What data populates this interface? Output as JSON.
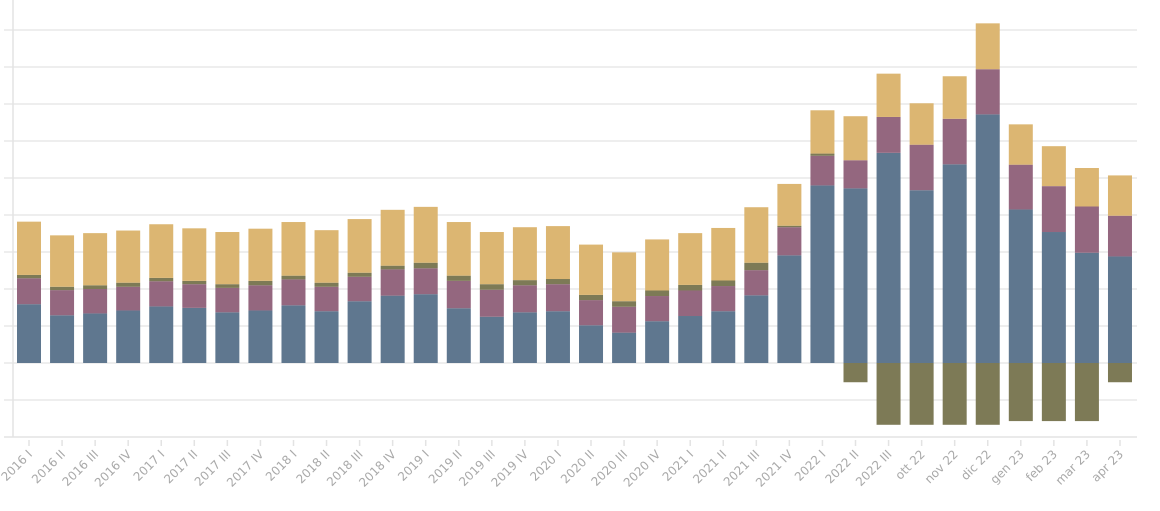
{
  "chart_data": {
    "type": "bar",
    "stacked": true,
    "title": "",
    "xlabel": "",
    "ylabel": "",
    "ylim": [
      -2,
      9
    ],
    "y_ticks_shown": false,
    "grid": true,
    "legend": "none",
    "categories": [
      "2016 I",
      "2016 II",
      "2016 III",
      "2016 IV",
      "2017 I",
      "2017 II",
      "2017 III",
      "2017 IV",
      "2018 I",
      "2018 II",
      "2018 III",
      "2018 IV",
      "2019 I",
      "2019 II",
      "2019 III",
      "2019 IV",
      "2020 I",
      "2020 II",
      "2020 III",
      "2020 IV",
      "2021 I",
      "2021 II",
      "2021 III",
      "2021 IV",
      "2022 I",
      "2022 II",
      "2022 III",
      "ott 22",
      "nov 22",
      "dic 22",
      "gen 23",
      "feb 23",
      "mar 23",
      "apr 23"
    ],
    "series": [
      {
        "name": "series-blue",
        "color": "#5f778f",
        "values": [
          1.59,
          1.29,
          1.34,
          1.42,
          1.53,
          1.49,
          1.37,
          1.42,
          1.56,
          1.4,
          1.67,
          1.82,
          1.86,
          1.48,
          1.25,
          1.37,
          1.4,
          1.02,
          0.82,
          1.13,
          1.27,
          1.4,
          1.83,
          2.91,
          4.8,
          4.72,
          5.68,
          4.67,
          5.37,
          6.72,
          4.15,
          3.54,
          2.98,
          2.88
        ]
      },
      {
        "name": "series-purple",
        "color": "#94677f",
        "values": [
          0.7,
          0.68,
          0.66,
          0.64,
          0.68,
          0.64,
          0.66,
          0.68,
          0.7,
          0.66,
          0.66,
          0.71,
          0.7,
          0.74,
          0.73,
          0.73,
          0.73,
          0.68,
          0.7,
          0.68,
          0.69,
          0.68,
          0.68,
          0.76,
          0.8,
          0.76,
          0.97,
          1.23,
          1.23,
          1.22,
          1.21,
          1.24,
          1.25,
          1.1
        ]
      },
      {
        "name": "series-olive",
        "color": "#7d7a56",
        "values": [
          0.09,
          0.09,
          0.1,
          0.11,
          0.09,
          0.09,
          0.1,
          0.12,
          0.1,
          0.11,
          0.11,
          0.1,
          0.15,
          0.14,
          0.15,
          0.14,
          0.14,
          0.14,
          0.15,
          0.15,
          0.15,
          0.15,
          0.2,
          0.04,
          0.06,
          -0.52,
          -1.67,
          -1.67,
          -1.67,
          -1.67,
          -1.57,
          -1.57,
          -1.57,
          -0.52
        ]
      },
      {
        "name": "series-yellow",
        "color": "#dcb672",
        "values": [
          1.44,
          1.39,
          1.41,
          1.41,
          1.45,
          1.42,
          1.41,
          1.41,
          1.45,
          1.42,
          1.45,
          1.51,
          1.51,
          1.45,
          1.41,
          1.43,
          1.43,
          1.36,
          1.32,
          1.38,
          1.4,
          1.42,
          1.5,
          1.13,
          1.17,
          1.19,
          1.17,
          1.12,
          1.15,
          1.24,
          1.09,
          1.08,
          1.04,
          1.09
        ]
      }
    ]
  },
  "colors": {
    "grid": "#e8e8e8",
    "axis": "#e3e3e3",
    "tick_label": "#a9a9a9"
  }
}
